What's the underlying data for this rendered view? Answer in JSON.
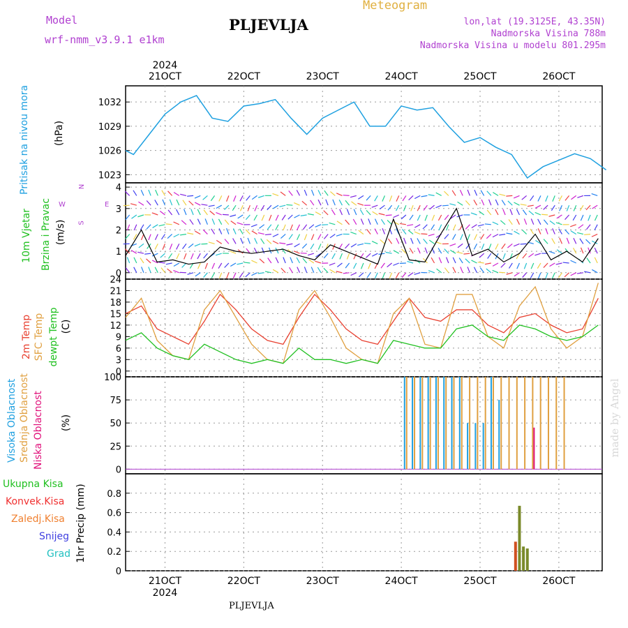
{
  "header": {
    "model_label": "Model",
    "model_value": "wrf-nmm_v3.9.1  e1km",
    "station": "PLJEVLJA",
    "meteogram": "Meteogram",
    "lonlat": "lon,lat (19.3125E, 43.35N)",
    "altitude": "Nadmorska Visina 788m",
    "model_altitude": "Nadmorska Visina u modelu 801.295m",
    "watermark": "made by Angel",
    "footer_station": "PLJEVLJA"
  },
  "axis": {
    "year": "2024",
    "dates": [
      "21OCT",
      "22OCT",
      "23OCT",
      "24OCT",
      "25OCT",
      "26OCT"
    ]
  },
  "colors": {
    "pressure": "#1ea0e0",
    "temp2m": "#e84030",
    "sfc": "#e0a040",
    "dewpt": "#20c020",
    "high_cloud": "#20a0e0",
    "mid_cloud": "#e0a040",
    "low_cloud": "#e0107a",
    "label_total": "#20c020",
    "label_conv": "#f03030",
    "label_frozen": "#f08030",
    "label_snow": "#4040e0",
    "label_graupel": "#20c0c0",
    "precip_bar": "#7a8a2a",
    "precip_bar2": "#d05020",
    "wind_label": "#20c020",
    "wind_compass": "#b040d0"
  },
  "panels": {
    "pressure": {
      "label": "Pritisak na nivou mora",
      "unit": "(hPa)"
    },
    "wind": {
      "label1": "10m Vjetar",
      "label2": "Brzina i Pravac",
      "unit": "(m/s)",
      "compass_n": "N",
      "compass_s": "S",
      "compass_w": "W",
      "compass_e": "E"
    },
    "temp": {
      "label1": "2m Temp",
      "label2": "SFC Temp",
      "label3": "dewpt Temp",
      "unit": "(C)"
    },
    "cloud": {
      "label1": "Visoka Oblacnost",
      "label2": "Srednja Oblacnost",
      "label3": "Niska Oblacnost",
      "unit": "(%)"
    },
    "precip": {
      "total": "Ukupna Kisa",
      "conv": "Konvek.Kisa",
      "frozen": "Zaledj.Kisa",
      "snow": "Snijeg",
      "graupel": "Grad",
      "unit": "1hr Precip (mm)"
    }
  },
  "chart_data": [
    {
      "type": "line",
      "name": "pressure",
      "x": [
        20.5,
        20.6,
        20.8,
        21.0,
        21.2,
        21.4,
        21.6,
        21.8,
        22.0,
        22.2,
        22.4,
        22.6,
        22.8,
        23.0,
        23.2,
        23.4,
        23.6,
        23.8,
        24.0,
        24.2,
        24.4,
        24.6,
        24.8,
        25.0,
        25.2,
        25.4,
        25.6,
        25.8,
        26.0,
        26.2,
        26.4,
        26.6
      ],
      "y": [
        1026.0,
        1025.5,
        1028.0,
        1030.5,
        1032.0,
        1032.8,
        1030.0,
        1029.6,
        1031.5,
        1031.8,
        1032.3,
        1030.0,
        1028.0,
        1030.0,
        1031.0,
        1032.0,
        1029.0,
        1029.0,
        1031.5,
        1031.0,
        1031.3,
        1029.0,
        1027.0,
        1027.6,
        1026.4,
        1025.5,
        1022.6,
        1024.0,
        1024.8,
        1025.6,
        1025.0,
        1023.6
      ],
      "ylim": [
        1022,
        1034
      ],
      "yticks": [
        1023,
        1026,
        1029,
        1032
      ]
    },
    {
      "type": "line",
      "name": "wind",
      "x": [
        20.5,
        20.7,
        20.9,
        21.1,
        21.3,
        21.5,
        21.7,
        21.9,
        22.1,
        22.3,
        22.5,
        22.7,
        22.9,
        23.1,
        23.3,
        23.5,
        23.7,
        23.9,
        24.1,
        24.3,
        24.5,
        24.7,
        24.9,
        25.1,
        25.3,
        25.5,
        25.7,
        25.9,
        26.1,
        26.3,
        26.5
      ],
      "y": [
        0.8,
        2.0,
        0.5,
        0.6,
        0.4,
        0.5,
        1.2,
        1.0,
        0.9,
        1.0,
        1.1,
        0.8,
        0.6,
        1.3,
        1.0,
        0.7,
        0.4,
        2.5,
        0.6,
        0.5,
        1.8,
        3.0,
        0.8,
        1.1,
        0.5,
        0.9,
        1.8,
        0.6,
        1.0,
        0.5,
        1.6
      ],
      "ylim": [
        -0.3,
        4.2
      ],
      "yticks": [
        0,
        1,
        2,
        3,
        4
      ]
    },
    {
      "type": "line",
      "name": "temperature",
      "x": [
        20.5,
        20.7,
        20.9,
        21.1,
        21.3,
        21.5,
        21.7,
        21.9,
        22.1,
        22.3,
        22.5,
        22.7,
        22.9,
        23.1,
        23.3,
        23.5,
        23.7,
        23.9,
        24.1,
        24.3,
        24.5,
        24.7,
        24.9,
        25.1,
        25.3,
        25.5,
        25.7,
        25.9,
        26.1,
        26.3,
        26.5
      ],
      "series": [
        {
          "key": "temp2m",
          "values": [
            15,
            17,
            11,
            9,
            7,
            13,
            20,
            16,
            11,
            8,
            7,
            14,
            20,
            16,
            11,
            8,
            7,
            13,
            19,
            14,
            13,
            16,
            16,
            12,
            10,
            14,
            15,
            12,
            10,
            11,
            19
          ]
        },
        {
          "key": "sfc",
          "values": [
            14,
            19,
            8,
            4,
            3,
            16,
            21,
            14,
            7,
            3,
            2,
            16,
            21,
            14,
            6,
            3,
            2,
            15,
            19,
            7,
            6,
            20,
            20,
            9,
            6,
            17,
            22,
            11,
            6,
            9,
            23
          ]
        },
        {
          "key": "dewpt",
          "values": [
            8,
            10,
            6,
            4,
            3,
            7,
            5,
            3,
            2,
            3,
            2,
            6,
            3,
            3,
            2,
            3,
            2,
            8,
            7,
            6,
            6,
            11,
            12,
            9,
            8,
            12,
            11,
            9,
            8,
            9,
            12
          ]
        }
      ],
      "ylim": [
        -1.5,
        24
      ],
      "yticks": [
        0,
        3,
        6,
        9,
        12,
        15,
        18,
        21,
        24
      ]
    },
    {
      "type": "bar",
      "name": "cloud",
      "x": [
        24.05,
        24.15,
        24.25,
        24.35,
        24.45,
        24.55,
        24.65,
        24.75,
        24.85,
        24.95,
        25.05,
        25.15,
        25.25,
        25.35,
        25.45,
        25.55,
        25.65,
        25.75,
        25.85,
        25.95,
        26.05
      ],
      "series": [
        {
          "key": "high_cloud",
          "values": [
            100,
            100,
            100,
            100,
            100,
            100,
            100,
            100,
            50,
            50,
            50,
            100,
            75,
            0,
            0,
            0,
            0,
            0,
            0,
            0,
            0
          ]
        },
        {
          "key": "mid_cloud",
          "values": [
            100,
            100,
            100,
            100,
            100,
            100,
            100,
            100,
            100,
            100,
            100,
            100,
            100,
            100,
            100,
            100,
            100,
            100,
            100,
            100,
            100
          ]
        },
        {
          "key": "low_cloud",
          "values": [
            0,
            0,
            0,
            0,
            0,
            0,
            0,
            0,
            0,
            0,
            0,
            0,
            0,
            0,
            0,
            0,
            45,
            0,
            0,
            0,
            0
          ]
        }
      ],
      "ylim": [
        -5,
        100
      ],
      "yticks": [
        0,
        25,
        50,
        75,
        100
      ]
    },
    {
      "type": "bar",
      "name": "precip",
      "x": [
        25.45,
        25.5,
        25.55,
        25.6
      ],
      "values": [
        0.3,
        0.67,
        0.25,
        0.23
      ],
      "ylim": [
        0,
        1.0
      ],
      "yticks": [
        0,
        0.2,
        0.4,
        0.6,
        0.8
      ]
    }
  ]
}
